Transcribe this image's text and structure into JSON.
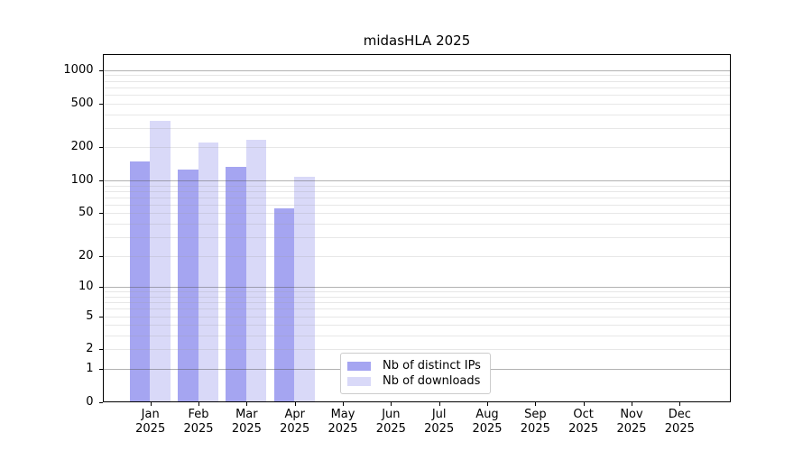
{
  "title": "midasHLA 2025",
  "chart_data": {
    "type": "bar",
    "title": "midasHLA 2025",
    "months": [
      "Jan",
      "Feb",
      "Mar",
      "Apr",
      "May",
      "Jun",
      "Jul",
      "Aug",
      "Sep",
      "Oct",
      "Nov",
      "Dec"
    ],
    "year": "2025",
    "categories": [
      "Jan 2025",
      "Feb 2025",
      "Mar 2025",
      "Apr 2025",
      "May 2025",
      "Jun 2025",
      "Jul 2025",
      "Aug 2025",
      "Sep 2025",
      "Oct 2025",
      "Nov 2025",
      "Dec 2025"
    ],
    "series": [
      {
        "name": "Nb of distinct IPs",
        "color": "#a5a5f1",
        "values": [
          150,
          126,
          132,
          56,
          0,
          0,
          0,
          0,
          0,
          0,
          0,
          0
        ]
      },
      {
        "name": "Nb of downloads",
        "color": "#d9d9f8",
        "values": [
          345,
          220,
          236,
          109,
          0,
          0,
          0,
          0,
          0,
          0,
          0,
          0
        ]
      }
    ],
    "yscale": "log10(value+1)",
    "yticks": [
      1000,
      500,
      200,
      100,
      50,
      20,
      10,
      5,
      2,
      1,
      0
    ],
    "ylim": [
      0,
      1400
    ],
    "grid": "horizontal; solid gray lines at 1,10,100,1000; faint minor lines at 2-9 multiples",
    "legend_position": "bottom-center-inside"
  },
  "colors": {
    "bar_distinct_ips": "#a5a5f1",
    "bar_downloads": "#d9d9f8",
    "grid_major": "#b4b4b4",
    "grid_minor": "#e9e9e9",
    "spine": "#000000",
    "legend_border": "#cccccc",
    "background": "#ffffff"
  }
}
